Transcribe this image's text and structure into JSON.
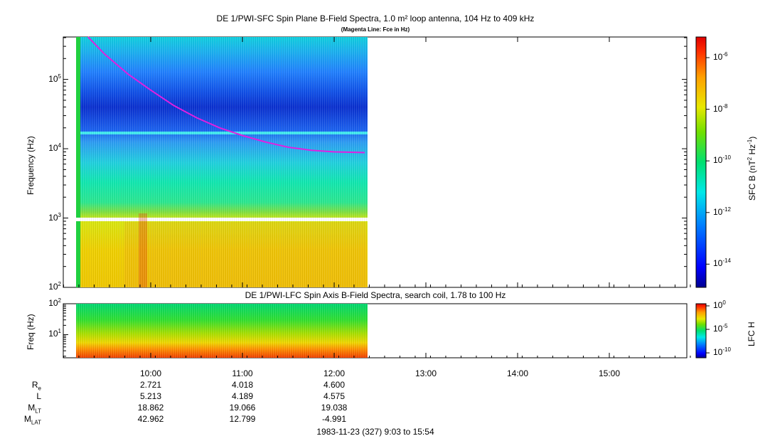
{
  "chart_data": [
    {
      "type": "heatmap",
      "title": "DE 1/PWI-SFC  Spin Plane B-Field Spectra, 1.0 m² loop antenna, 104 Hz to 409 kHz",
      "subtitle": "(Magenta Line: Fce in Hz)",
      "ylabel": "Frequency (Hz)",
      "yscale": "log",
      "ylim": [
        100,
        409000
      ],
      "yticks": [
        {
          "base": "10",
          "exp": "2",
          "value": 100
        },
        {
          "base": "10",
          "exp": "3",
          "value": 1000
        },
        {
          "base": "10",
          "exp": "4",
          "value": 10000
        },
        {
          "base": "10",
          "exp": "5",
          "value": 100000
        }
      ],
      "xlim": [
        "09:03",
        "15:54"
      ],
      "data_end": "12:23",
      "colorbar": {
        "label_main": "SFC B (nT",
        "label_sup1": "2",
        "label_mid": " Hz",
        "label_sup2": "-1",
        "label_end": ")",
        "scale": "log",
        "ticks": [
          {
            "base": "10",
            "exp": "-6"
          },
          {
            "base": "10",
            "exp": "-8"
          },
          {
            "base": "10",
            "exp": "-10"
          },
          {
            "base": "10",
            "exp": "-12"
          },
          {
            "base": "10",
            "exp": "-14"
          }
        ]
      },
      "fce_line": {
        "name": "Fce",
        "color": "#e020e0",
        "points": [
          {
            "t": "09:19",
            "f": 409000
          },
          {
            "t": "09:30",
            "f": 230000
          },
          {
            "t": "09:45",
            "f": 120000
          },
          {
            "t": "10:00",
            "f": 70000
          },
          {
            "t": "10:15",
            "f": 42000
          },
          {
            "t": "10:30",
            "f": 28000
          },
          {
            "t": "10:45",
            "f": 20000
          },
          {
            "t": "11:00",
            "f": 15500
          },
          {
            "t": "11:15",
            "f": 12500
          },
          {
            "t": "11:30",
            "f": 10500
          },
          {
            "t": "11:45",
            "f": 9500
          },
          {
            "t": "12:00",
            "f": 9000
          },
          {
            "t": "12:20",
            "f": 8800
          }
        ]
      }
    },
    {
      "type": "heatmap",
      "title": "DE 1/PWI-LFC  Spin Axis B-Field Spectra, search coil, 1.78 to 100 Hz",
      "ylabel": "Freq (Hz)",
      "yscale": "log",
      "ylim": [
        1.78,
        100
      ],
      "yticks": [
        {
          "base": "10",
          "exp": "1",
          "value": 10
        },
        {
          "base": "10",
          "exp": "2",
          "value": 100
        }
      ],
      "colorbar": {
        "label": "LFC H",
        "scale": "log",
        "ticks": [
          {
            "base": "10",
            "exp": "0"
          },
          {
            "base": "10",
            "exp": "-5"
          },
          {
            "base": "10",
            "exp": "-10"
          }
        ]
      }
    }
  ],
  "time_axis": {
    "ticks": [
      "10:00",
      "11:00",
      "12:00",
      "13:00",
      "14:00",
      "15:00"
    ]
  },
  "ephemeris": {
    "rows": [
      {
        "label": "R",
        "sub": "e",
        "values": [
          "2.721",
          "4.018",
          "4.600"
        ]
      },
      {
        "label": "L",
        "sub": "",
        "values": [
          "5.213",
          "4.189",
          "4.575"
        ]
      },
      {
        "label": "M",
        "sub": "LT",
        "values": [
          "18.862",
          "19.066",
          "19.038"
        ]
      },
      {
        "label": "M",
        "sub": "LAT",
        "values": [
          "42.962",
          "12.799",
          "-4.991"
        ]
      }
    ]
  },
  "footer": "1983-11-23 (327) 9:03 to 15:54"
}
